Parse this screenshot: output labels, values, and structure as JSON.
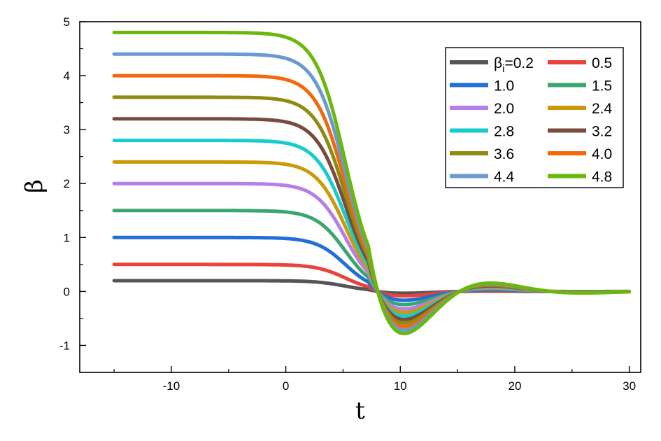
{
  "chart_data": {
    "type": "line",
    "title": "",
    "xlabel": "t",
    "ylabel": "β",
    "xlim": [
      -18,
      31
    ],
    "ylim": [
      -1.5,
      5
    ],
    "x_ticks": [
      -10,
      0,
      10,
      20,
      30
    ],
    "y_ticks": [
      -1,
      0,
      1,
      2,
      3,
      4,
      5
    ],
    "x_tick_labels": [
      "-10",
      "0",
      "10",
      "20",
      "30"
    ],
    "y_tick_labels": [
      "-1",
      "0",
      "1",
      "2",
      "3",
      "4",
      "5"
    ],
    "grid": false,
    "x_range": [
      -15,
      30
    ],
    "legend": {
      "position": "top-right",
      "first_label_prefix": "β",
      "first_label_sub": "i",
      "first_label_suffix": "=0.2"
    },
    "series": [
      {
        "name": "0.2",
        "initial": 0.2,
        "color": "#555555"
      },
      {
        "name": "0.5",
        "initial": 0.5,
        "color": "#e8423a"
      },
      {
        "name": "1.0",
        "initial": 1.0,
        "color": "#1f6fd6"
      },
      {
        "name": "1.5",
        "initial": 1.5,
        "color": "#3aa66f"
      },
      {
        "name": "2.0",
        "initial": 2.0,
        "color": "#b67ee6"
      },
      {
        "name": "2.4",
        "initial": 2.4,
        "color": "#cc9a06"
      },
      {
        "name": "2.8",
        "initial": 2.8,
        "color": "#17cccc"
      },
      {
        "name": "3.2",
        "initial": 3.2,
        "color": "#7a4a3e"
      },
      {
        "name": "3.6",
        "initial": 3.6,
        "color": "#8f8a10"
      },
      {
        "name": "4.0",
        "initial": 4.0,
        "color": "#f06a0c"
      },
      {
        "name": "4.4",
        "initial": 4.4,
        "color": "#6a9ad0"
      },
      {
        "name": "4.8",
        "initial": 4.8,
        "color": "#6ab80a"
      }
    ]
  }
}
